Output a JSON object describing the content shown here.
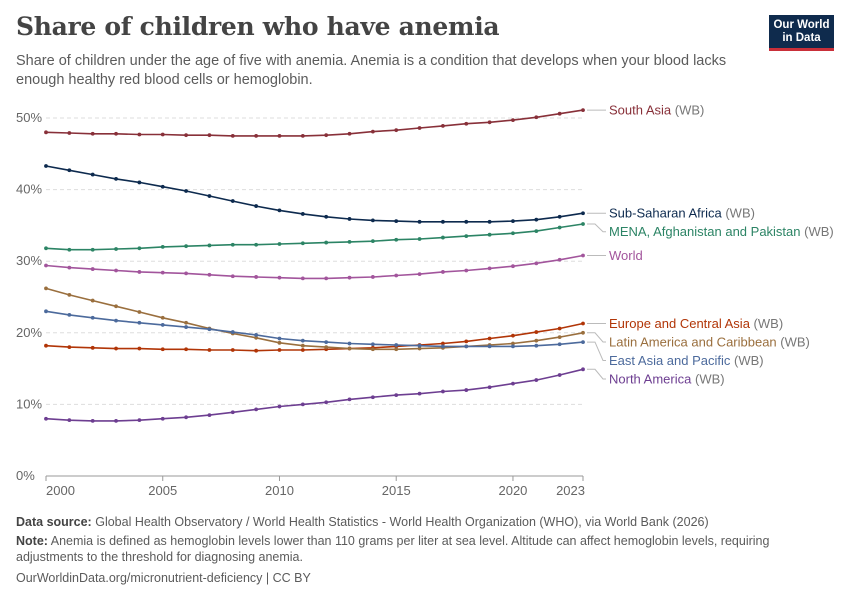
{
  "header": {
    "title": "Share of children who have anemia",
    "subtitle": "Share of children under the age of five with anemia. Anemia is a condition that develops when your blood lacks enough healthy red blood cells or hemoglobin."
  },
  "logo": {
    "line1": "Our World",
    "line2": "in Data",
    "bg_color": "#0f2b4d",
    "accent_color": "#c92f39"
  },
  "footer": {
    "source_label": "Data source:",
    "source_text": "Global Health Observatory / World Health Statistics - World Health Organization (WHO), via World Bank (2026)",
    "note_label": "Note:",
    "note_text": "Anemia is defined as hemoglobin levels lower than 110 grams per liter at sea level. Altitude can affect hemoglobin levels, requiring adjustments to the threshold for diagnosing anemia.",
    "url": "OurWorldinData.org/micronutrient-deficiency | CC BY"
  },
  "chart_data": {
    "type": "line",
    "x": [
      2000,
      2001,
      2002,
      2003,
      2004,
      2005,
      2006,
      2007,
      2008,
      2009,
      2010,
      2011,
      2012,
      2013,
      2014,
      2015,
      2016,
      2017,
      2018,
      2019,
      2020,
      2021,
      2022,
      2023
    ],
    "xticks": [
      2000,
      2005,
      2010,
      2015,
      2020,
      2023
    ],
    "xtick_labels": [
      "2000",
      "2005",
      "2010",
      "2015",
      "2020",
      "2023"
    ],
    "xlim": [
      2000,
      2023
    ],
    "ylim": [
      0,
      50
    ],
    "yticks": [
      0,
      10,
      20,
      30,
      40,
      50
    ],
    "ytick_labels": [
      "0%",
      "10%",
      "20%",
      "30%",
      "40%",
      "50%"
    ],
    "grid": "horizontal dashed",
    "legend": "right, labels at line ends",
    "series": [
      {
        "name": "South Asia",
        "suffix": "(WB)",
        "color": "#883039",
        "values": [
          48.0,
          47.9,
          47.8,
          47.8,
          47.7,
          47.7,
          47.6,
          47.6,
          47.5,
          47.5,
          47.5,
          47.5,
          47.6,
          47.8,
          48.1,
          48.3,
          48.6,
          48.9,
          49.2,
          49.4,
          49.7,
          50.1,
          50.6,
          51.1
        ]
      },
      {
        "name": "Sub-Saharan Africa",
        "suffix": "(WB)",
        "color": "#0d2a4e",
        "values": [
          43.3,
          42.7,
          42.1,
          41.5,
          41.0,
          40.4,
          39.8,
          39.1,
          38.4,
          37.7,
          37.1,
          36.6,
          36.2,
          35.9,
          35.7,
          35.6,
          35.5,
          35.5,
          35.5,
          35.5,
          35.6,
          35.8,
          36.2,
          36.7
        ]
      },
      {
        "name": "MENA, Afghanistan and Pakistan",
        "suffix": "(WB)",
        "color": "#2c8465",
        "values": [
          31.8,
          31.6,
          31.6,
          31.7,
          31.8,
          32.0,
          32.1,
          32.2,
          32.3,
          32.3,
          32.4,
          32.5,
          32.6,
          32.7,
          32.8,
          33.0,
          33.1,
          33.3,
          33.5,
          33.7,
          33.9,
          34.2,
          34.7,
          35.2
        ]
      },
      {
        "name": "World",
        "suffix": "",
        "color": "#a2559c",
        "values": [
          29.4,
          29.1,
          28.9,
          28.7,
          28.5,
          28.4,
          28.3,
          28.1,
          27.9,
          27.8,
          27.7,
          27.6,
          27.6,
          27.7,
          27.8,
          28.0,
          28.2,
          28.5,
          28.7,
          29.0,
          29.3,
          29.7,
          30.2,
          30.8
        ]
      },
      {
        "name": "Europe and Central Asia",
        "suffix": "(WB)",
        "color": "#b13507",
        "values": [
          18.2,
          18.0,
          17.9,
          17.8,
          17.8,
          17.7,
          17.7,
          17.6,
          17.6,
          17.5,
          17.6,
          17.6,
          17.7,
          17.8,
          17.9,
          18.1,
          18.3,
          18.5,
          18.8,
          19.2,
          19.6,
          20.1,
          20.6,
          21.3
        ]
      },
      {
        "name": "Latin America and Caribbean",
        "suffix": "(WB)",
        "color": "#9a6f3e",
        "values": [
          26.2,
          25.3,
          24.5,
          23.7,
          22.9,
          22.1,
          21.4,
          20.6,
          19.9,
          19.3,
          18.6,
          18.2,
          18.0,
          17.8,
          17.7,
          17.7,
          17.8,
          17.9,
          18.1,
          18.3,
          18.5,
          18.9,
          19.4,
          20.0
        ]
      },
      {
        "name": "East Asia and Pacific",
        "suffix": "(WB)",
        "color": "#4c6a9c",
        "values": [
          23.0,
          22.5,
          22.1,
          21.7,
          21.4,
          21.1,
          20.8,
          20.5,
          20.1,
          19.7,
          19.2,
          18.9,
          18.7,
          18.5,
          18.4,
          18.3,
          18.2,
          18.1,
          18.1,
          18.1,
          18.1,
          18.2,
          18.4,
          18.7
        ]
      },
      {
        "name": "North America",
        "suffix": "(WB)",
        "color": "#6d3e91",
        "values": [
          8.0,
          7.8,
          7.7,
          7.7,
          7.8,
          8.0,
          8.2,
          8.5,
          8.9,
          9.3,
          9.7,
          10.0,
          10.3,
          10.7,
          11.0,
          11.3,
          11.5,
          11.8,
          12.0,
          12.4,
          12.9,
          13.4,
          14.1,
          14.9
        ]
      }
    ]
  }
}
